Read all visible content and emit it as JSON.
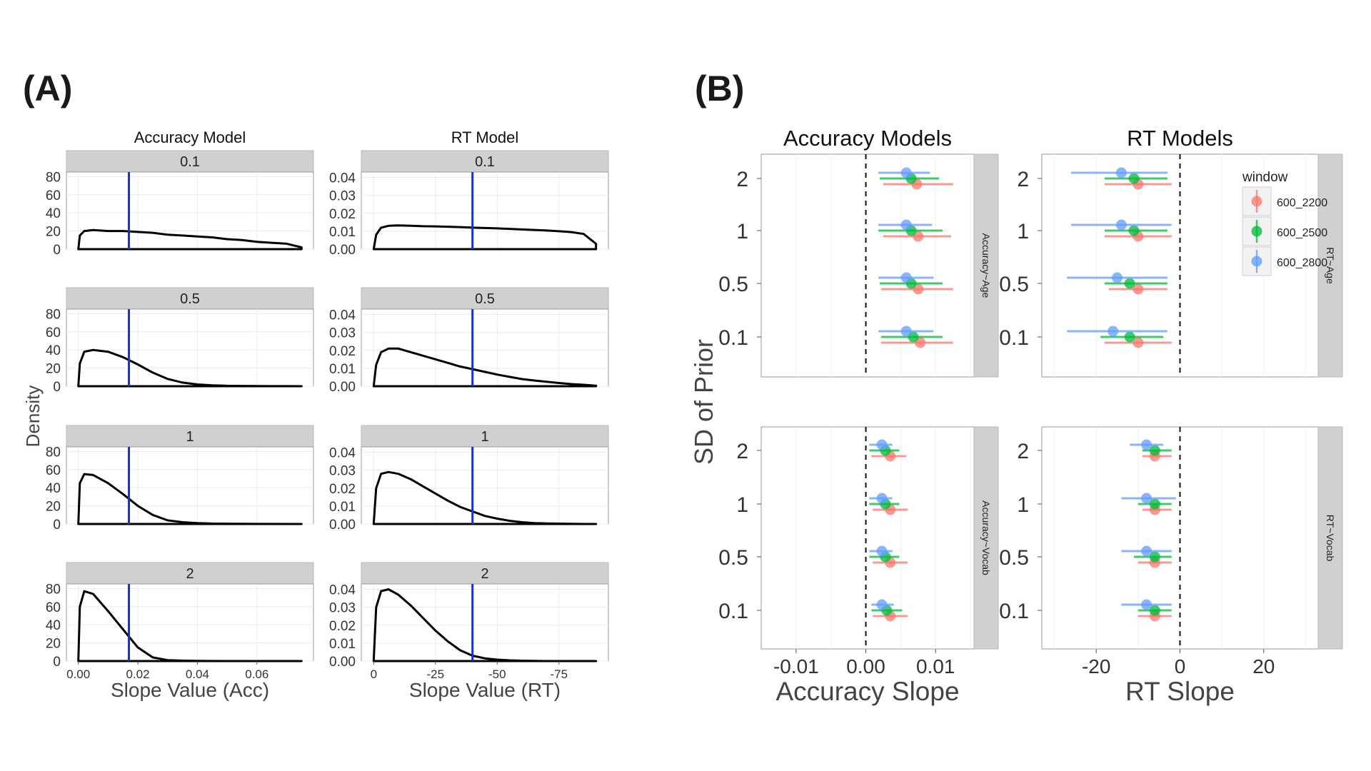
{
  "panel_labels": {
    "a": "(A)",
    "b": "(B)"
  },
  "chart_data": [
    {
      "type": "line",
      "panel": "(A)",
      "description_fields": "density curves of slope posterior",
      "column_titles": [
        "Accuracy Model",
        "RT Model"
      ],
      "row_strips": [
        "0.1",
        "0.5",
        "1",
        "2"
      ],
      "ylabel": "Density",
      "columns": [
        {
          "title": "Accuracy Model",
          "xlabel": "Slope Value (Acc)",
          "x_ticks": [
            0.0,
            0.02,
            0.04,
            0.06
          ],
          "x_tick_labels": [
            "0.00",
            "0.02",
            "0.04",
            "0.06"
          ],
          "xlim": [
            -0.004,
            0.079
          ],
          "y_ticks": [
            0,
            20,
            40,
            60,
            80
          ],
          "y_tick_labels": [
            "0",
            "20",
            "40",
            "60",
            "80"
          ],
          "ylim": [
            0,
            85
          ],
          "vline": 0.017,
          "x": [
            0.0,
            0.0005,
            0.002,
            0.005,
            0.01,
            0.015,
            0.02,
            0.025,
            0.03,
            0.035,
            0.04,
            0.045,
            0.05,
            0.055,
            0.06,
            0.065,
            0.07,
            0.075
          ],
          "series": [
            {
              "name": "0.1",
              "values": [
                0,
                15,
                20,
                21,
                20,
                20,
                19,
                18,
                16,
                15,
                14,
                13,
                11,
                10,
                8,
                7,
                6,
                2
              ]
            },
            {
              "name": "0.5",
              "values": [
                0,
                25,
                38,
                40,
                38,
                32,
                24,
                15,
                8,
                4,
                2,
                1,
                0.5,
                0.3,
                0.2,
                0.1,
                0.1,
                0
              ]
            },
            {
              "name": "1",
              "values": [
                0,
                45,
                55,
                54,
                45,
                33,
                20,
                10,
                4,
                2,
                1,
                0.5,
                0.3,
                0.2,
                0.1,
                0.1,
                0,
                0
              ]
            },
            {
              "name": "2",
              "values": [
                0,
                60,
                77,
                74,
                55,
                35,
                15,
                4,
                1,
                0.5,
                0.2,
                0.1,
                0,
                0,
                0,
                0,
                0,
                0
              ]
            }
          ]
        },
        {
          "title": "RT Model",
          "xlabel": "Slope Value (RT)",
          "x_ticks": [
            0,
            -25,
            -50,
            -75
          ],
          "x_tick_labels": [
            "0",
            "-25",
            "-50",
            "-75"
          ],
          "xlim": [
            5,
            -95
          ],
          "y_ticks": [
            0,
            0.01,
            0.02,
            0.03,
            0.04
          ],
          "y_tick_labels": [
            "0.00",
            "0.01",
            "0.02",
            "0.03",
            "0.04"
          ],
          "ylim": [
            0,
            0.043
          ],
          "vline": -40,
          "x": [
            0,
            -1,
            -3,
            -6,
            -10,
            -15,
            -20,
            -25,
            -30,
            -35,
            -40,
            -45,
            -50,
            -55,
            -60,
            -65,
            -70,
            -75,
            -80,
            -85,
            -90
          ],
          "series": [
            {
              "name": "0.1",
              "values": [
                0,
                0.008,
                0.012,
                0.013,
                0.0132,
                0.013,
                0.0128,
                0.0127,
                0.0125,
                0.0123,
                0.012,
                0.0118,
                0.0116,
                0.0113,
                0.011,
                0.0107,
                0.0104,
                0.01,
                0.0095,
                0.0085,
                0.003
              ]
            },
            {
              "name": "0.5",
              "values": [
                0,
                0.012,
                0.019,
                0.021,
                0.021,
                0.019,
                0.017,
                0.015,
                0.013,
                0.011,
                0.0095,
                0.008,
                0.0065,
                0.0052,
                0.004,
                0.0032,
                0.0025,
                0.0018,
                0.0012,
                0.0008,
                0.0003
              ]
            },
            {
              "name": "1",
              "values": [
                0,
                0.02,
                0.028,
                0.029,
                0.028,
                0.025,
                0.021,
                0.017,
                0.013,
                0.0095,
                0.007,
                0.0045,
                0.003,
                0.0018,
                0.001,
                0.0005,
                0.0003,
                0.0002,
                0.0001,
                0,
                0
              ]
            },
            {
              "name": "2",
              "values": [
                0,
                0.03,
                0.039,
                0.04,
                0.037,
                0.031,
                0.024,
                0.017,
                0.011,
                0.006,
                0.003,
                0.0015,
                0.0008,
                0.0004,
                0.0002,
                0.0001,
                0,
                0,
                0,
                0,
                0
              ]
            }
          ]
        }
      ]
    },
    {
      "type": "scatter",
      "panel": "(B)",
      "column_titles": [
        "Accuracy Models",
        "RT Models"
      ],
      "row_strips": [
        [
          "Accuracy~Age",
          "RT~Age"
        ],
        [
          "Accuracy~Vocab",
          "RT~Vocab"
        ]
      ],
      "ylabel": "SD of Prior",
      "y_categories": [
        "0.1",
        "0.5",
        "1",
        "2"
      ],
      "legend": {
        "title": "window",
        "placement": "top-right",
        "entries": [
          "600_2200",
          "600_2500",
          "600_2800"
        ]
      },
      "colors": {
        "600_2200": "#F8766D",
        "600_2500": "#00BA38",
        "600_2800": "#619CFF"
      },
      "columns": [
        {
          "title": "Accuracy Models",
          "xlabel": "Accuracy Slope",
          "x_ticks": [
            -0.01,
            0.0,
            0.01
          ],
          "x_tick_labels": [
            "-0.01",
            "0.00",
            "0.01"
          ],
          "xlim": [
            -0.015,
            0.0155
          ],
          "zero_line": 0,
          "points": [
            [
              {
                "sd": "2",
                "series": "600_2200",
                "est": 0.0073,
                "lo": 0.0025,
                "hi": 0.0125
              },
              {
                "sd": "2",
                "series": "600_2500",
                "est": 0.0065,
                "lo": 0.002,
                "hi": 0.0105
              },
              {
                "sd": "2",
                "series": "600_2800",
                "est": 0.0058,
                "lo": 0.0018,
                "hi": 0.0092
              },
              {
                "sd": "1",
                "series": "600_2200",
                "est": 0.0075,
                "lo": 0.0025,
                "hi": 0.0122
              },
              {
                "sd": "1",
                "series": "600_2500",
                "est": 0.0065,
                "lo": 0.0018,
                "hi": 0.011
              },
              {
                "sd": "1",
                "series": "600_2800",
                "est": 0.0058,
                "lo": 0.0018,
                "hi": 0.0095
              },
              {
                "sd": "0.5",
                "series": "600_2200",
                "est": 0.0075,
                "lo": 0.0022,
                "hi": 0.0125
              },
              {
                "sd": "0.5",
                "series": "600_2500",
                "est": 0.0065,
                "lo": 0.002,
                "hi": 0.011
              },
              {
                "sd": "0.5",
                "series": "600_2800",
                "est": 0.0058,
                "lo": 0.0018,
                "hi": 0.0097
              },
              {
                "sd": "0.1",
                "series": "600_2200",
                "est": 0.0078,
                "lo": 0.0022,
                "hi": 0.0125
              },
              {
                "sd": "0.1",
                "series": "600_2500",
                "est": 0.0068,
                "lo": 0.0022,
                "hi": 0.011
              },
              {
                "sd": "0.1",
                "series": "600_2800",
                "est": 0.0058,
                "lo": 0.0018,
                "hi": 0.0097
              }
            ],
            [
              {
                "sd": "2",
                "series": "600_2200",
                "est": 0.0035,
                "lo": 0.0008,
                "hi": 0.0058
              },
              {
                "sd": "2",
                "series": "600_2500",
                "est": 0.0028,
                "lo": 0.0005,
                "hi": 0.0048
              },
              {
                "sd": "2",
                "series": "600_2800",
                "est": 0.0023,
                "lo": 0.0005,
                "hi": 0.0038
              },
              {
                "sd": "1",
                "series": "600_2200",
                "est": 0.0035,
                "lo": 0.001,
                "hi": 0.006
              },
              {
                "sd": "1",
                "series": "600_2500",
                "est": 0.0028,
                "lo": 0.0005,
                "hi": 0.0048
              },
              {
                "sd": "1",
                "series": "600_2800",
                "est": 0.0023,
                "lo": 0.0005,
                "hi": 0.0038
              },
              {
                "sd": "0.5",
                "series": "600_2200",
                "est": 0.0035,
                "lo": 0.001,
                "hi": 0.006
              },
              {
                "sd": "0.5",
                "series": "600_2500",
                "est": 0.0028,
                "lo": 0.0005,
                "hi": 0.0048
              },
              {
                "sd": "0.5",
                "series": "600_2800",
                "est": 0.0023,
                "lo": 0.0005,
                "hi": 0.0038
              },
              {
                "sd": "0.1",
                "series": "600_2200",
                "est": 0.0035,
                "lo": 0.001,
                "hi": 0.006
              },
              {
                "sd": "0.1",
                "series": "600_2500",
                "est": 0.003,
                "lo": 0.0008,
                "hi": 0.0052
              },
              {
                "sd": "0.1",
                "series": "600_2800",
                "est": 0.0023,
                "lo": 0.0008,
                "hi": 0.004
              }
            ]
          ]
        },
        {
          "title": "RT Models",
          "xlabel": "RT Slope",
          "x_ticks": [
            -20,
            0,
            20
          ],
          "x_tick_labels": [
            "-20",
            "0",
            "20"
          ],
          "xlim": [
            -33,
            33
          ],
          "zero_line": 0,
          "points": [
            [
              {
                "sd": "2",
                "series": "600_2200",
                "est": -10,
                "lo": -18,
                "hi": -2
              },
              {
                "sd": "2",
                "series": "600_2500",
                "est": -11,
                "lo": -18,
                "hi": -3
              },
              {
                "sd": "2",
                "series": "600_2800",
                "est": -14,
                "lo": -26,
                "hi": -3
              },
              {
                "sd": "1",
                "series": "600_2200",
                "est": -10,
                "lo": -18,
                "hi": -2
              },
              {
                "sd": "1",
                "series": "600_2500",
                "est": -11,
                "lo": -18,
                "hi": -3
              },
              {
                "sd": "1",
                "series": "600_2800",
                "est": -14,
                "lo": -26,
                "hi": -2
              },
              {
                "sd": "0.5",
                "series": "600_2200",
                "est": -10,
                "lo": -17,
                "hi": -3
              },
              {
                "sd": "0.5",
                "series": "600_2500",
                "est": -12,
                "lo": -18,
                "hi": -3
              },
              {
                "sd": "0.5",
                "series": "600_2800",
                "est": -15,
                "lo": -27,
                "hi": -3
              },
              {
                "sd": "0.1",
                "series": "600_2200",
                "est": -10,
                "lo": -18,
                "hi": -2
              },
              {
                "sd": "0.1",
                "series": "600_2500",
                "est": -12,
                "lo": -19,
                "hi": -4
              },
              {
                "sd": "0.1",
                "series": "600_2800",
                "est": -16,
                "lo": -27,
                "hi": -3
              }
            ],
            [
              {
                "sd": "2",
                "series": "600_2200",
                "est": -6,
                "lo": -9,
                "hi": -2
              },
              {
                "sd": "2",
                "series": "600_2500",
                "est": -6,
                "lo": -9,
                "hi": -2
              },
              {
                "sd": "2",
                "series": "600_2800",
                "est": -8,
                "lo": -12,
                "hi": -4
              },
              {
                "sd": "1",
                "series": "600_2200",
                "est": -6,
                "lo": -9,
                "hi": -2
              },
              {
                "sd": "1",
                "series": "600_2500",
                "est": -6,
                "lo": -10,
                "hi": -2
              },
              {
                "sd": "1",
                "series": "600_2800",
                "est": -8,
                "lo": -14,
                "hi": -1
              },
              {
                "sd": "0.5",
                "series": "600_2200",
                "est": -6,
                "lo": -10,
                "hi": -2
              },
              {
                "sd": "0.5",
                "series": "600_2500",
                "est": -6,
                "lo": -11,
                "hi": -2
              },
              {
                "sd": "0.5",
                "series": "600_2800",
                "est": -8,
                "lo": -14,
                "hi": -2
              },
              {
                "sd": "0.1",
                "series": "600_2200",
                "est": -6,
                "lo": -10,
                "hi": -2
              },
              {
                "sd": "0.1",
                "series": "600_2500",
                "est": -6,
                "lo": -10,
                "hi": -2
              },
              {
                "sd": "0.1",
                "series": "600_2800",
                "est": -8,
                "lo": -14,
                "hi": -2
              }
            ]
          ]
        }
      ]
    }
  ]
}
